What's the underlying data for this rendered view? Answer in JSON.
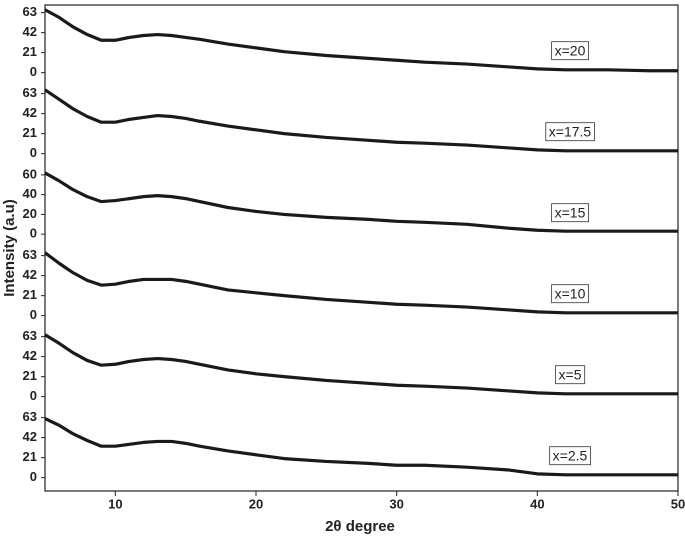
{
  "xlabel": "2θ degree",
  "ylabel": "Intensity (a.u)",
  "chart_data": [
    {
      "type": "line",
      "annotation": "x=20",
      "color": "#1a1a1a",
      "x": [
        5,
        6,
        7,
        8,
        9,
        10,
        11,
        12,
        13,
        14,
        15,
        16,
        18,
        20,
        22,
        25,
        28,
        30,
        32,
        35,
        38,
        40,
        42,
        45,
        48,
        50
      ],
      "values": [
        66,
        58,
        48,
        40,
        34,
        34,
        37,
        39,
        40,
        39,
        37,
        35,
        30,
        26,
        22,
        18,
        15,
        13,
        11,
        9,
        6,
        4,
        3,
        3,
        2,
        2
      ],
      "xlim": [
        5,
        50
      ],
      "ylim": [
        -14,
        71
      ],
      "yticks": [
        0,
        21,
        42,
        63
      ]
    },
    {
      "type": "line",
      "annotation": "x=17.5",
      "color": "#1a1a1a",
      "x": [
        5,
        6,
        7,
        8,
        9,
        10,
        11,
        12,
        13,
        14,
        15,
        16,
        18,
        20,
        22,
        25,
        28,
        30,
        32,
        35,
        38,
        40,
        42,
        45,
        48,
        50
      ],
      "values": [
        67,
        57,
        47,
        39,
        33,
        33,
        36,
        38,
        40,
        39,
        37,
        34,
        29,
        25,
        21,
        17,
        14,
        12,
        11,
        9,
        6,
        4,
        3,
        3,
        3,
        3
      ],
      "xlim": [
        5,
        50
      ],
      "ylim": [
        -14,
        71
      ],
      "yticks": [
        0,
        21,
        42,
        63
      ]
    },
    {
      "type": "line",
      "annotation": "x=15",
      "color": "#1a1a1a",
      "x": [
        5,
        6,
        7,
        8,
        9,
        10,
        11,
        12,
        13,
        14,
        15,
        16,
        18,
        20,
        22,
        25,
        28,
        30,
        32,
        35,
        38,
        40,
        42,
        45,
        48,
        50
      ],
      "values": [
        62,
        54,
        45,
        38,
        33,
        34,
        36,
        38,
        39,
        38,
        36,
        33,
        27,
        23,
        20,
        17,
        15,
        13,
        12,
        10,
        6,
        4,
        3,
        3,
        3,
        3
      ],
      "xlim": [
        5,
        50
      ],
      "ylim": [
        -14,
        68
      ],
      "yticks": [
        0,
        20,
        40,
        60
      ]
    },
    {
      "type": "line",
      "annotation": "x=10",
      "color": "#1a1a1a",
      "x": [
        5,
        6,
        7,
        8,
        9,
        10,
        11,
        12,
        13,
        14,
        15,
        16,
        18,
        20,
        22,
        25,
        28,
        30,
        32,
        35,
        38,
        40,
        42,
        45,
        48,
        50
      ],
      "values": [
        66,
        55,
        45,
        37,
        32,
        33,
        36,
        38,
        38,
        38,
        36,
        33,
        27,
        24,
        21,
        17,
        14,
        12,
        11,
        9,
        6,
        4,
        3,
        3,
        3,
        3
      ],
      "xlim": [
        5,
        50
      ],
      "ylim": [
        -14,
        71
      ],
      "yticks": [
        0,
        21,
        42,
        63
      ]
    },
    {
      "type": "line",
      "annotation": "x=5",
      "color": "#1a1a1a",
      "x": [
        5,
        6,
        7,
        8,
        9,
        10,
        11,
        12,
        13,
        14,
        15,
        16,
        18,
        20,
        22,
        25,
        28,
        30,
        32,
        35,
        38,
        40,
        42,
        45,
        48,
        50
      ],
      "values": [
        65,
        56,
        46,
        38,
        33,
        34,
        37,
        39,
        40,
        39,
        37,
        34,
        28,
        24,
        21,
        17,
        14,
        12,
        11,
        9,
        6,
        4,
        3,
        3,
        3,
        3
      ],
      "xlim": [
        5,
        50
      ],
      "ylim": [
        -14,
        71
      ],
      "yticks": [
        0,
        21,
        42,
        63
      ]
    },
    {
      "type": "line",
      "annotation": "x=2.5",
      "color": "#1a1a1a",
      "x": [
        5,
        6,
        7,
        8,
        9,
        10,
        11,
        12,
        13,
        14,
        15,
        16,
        18,
        20,
        22,
        25,
        28,
        30,
        32,
        35,
        38,
        40,
        42,
        45,
        48,
        50
      ],
      "values": [
        62,
        55,
        46,
        39,
        33,
        33,
        35,
        37,
        38,
        38,
        36,
        33,
        28,
        24,
        20,
        17,
        15,
        13,
        13,
        11,
        8,
        4,
        3,
        3,
        3,
        3
      ],
      "xlim": [
        5,
        50
      ],
      "ylim": [
        -14,
        71
      ],
      "yticks": [
        0,
        21,
        42,
        63
      ],
      "xticks": [
        10,
        20,
        30,
        40,
        50
      ]
    }
  ]
}
